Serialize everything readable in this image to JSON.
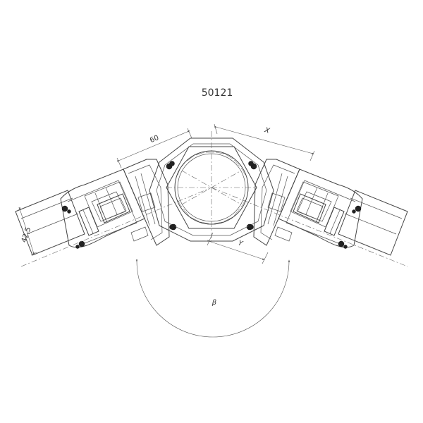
{
  "drawing": {
    "part_number": "50121",
    "dimensions": {
      "frame_width": "60",
      "offset_x": "X",
      "offset_y": "Y",
      "glass_thickness": "42,5",
      "angle": "β"
    }
  },
  "colors": {
    "line": "#444444",
    "gasket": "#222222",
    "background": "#ffffff"
  }
}
